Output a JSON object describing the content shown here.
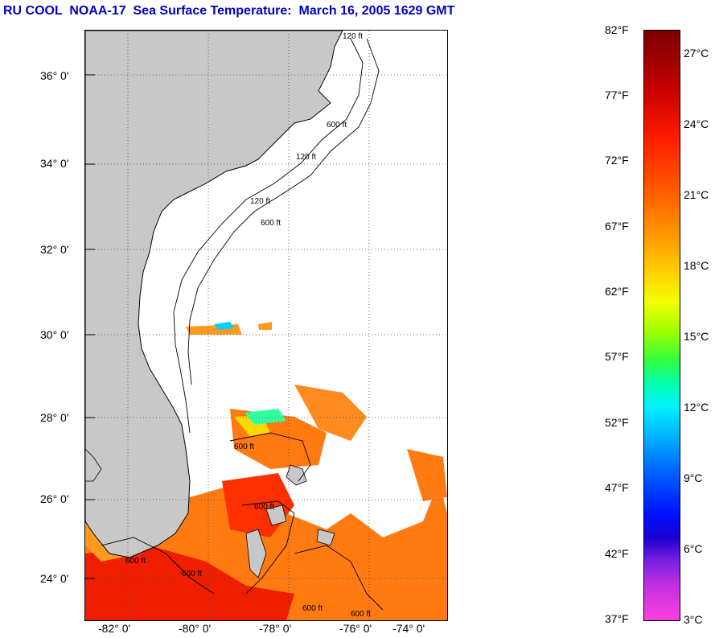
{
  "title": "RU COOL  NOAA-17  Sea Surface Temperature:  March 16, 2005 1629 GMT",
  "map": {
    "latitude_labels": [
      "36° 0'",
      "34° 0'",
      "32° 0'",
      "30° 0'",
      "28° 0'",
      "26° 0'",
      "24° 0'"
    ],
    "longitude_labels": [
      "-82° 0'",
      "-80° 0'",
      "-78° 0'",
      "-76° 0'",
      "-74° 0'"
    ],
    "isobath_labels": [
      "120 ft",
      "600 ft",
      "120 ft",
      "600 ft",
      "120 ft",
      "600 ft",
      "600 ft",
      "600 ft",
      "600 ft",
      "600 ft",
      "600 ft"
    ],
    "land_color": "#c8c8c8",
    "ocean_color": "#ffffff"
  },
  "colorbar": {
    "fahrenheit_labels": [
      "82°F",
      "77°F",
      "72°F",
      "67°F",
      "62°F",
      "57°F",
      "52°F",
      "47°F",
      "42°F",
      "37°F"
    ],
    "celsius_labels": [
      "27°C",
      "24°C",
      "21°C",
      "18°C",
      "15°C",
      "12°C",
      "9°C",
      "6°C",
      "3°C"
    ]
  }
}
